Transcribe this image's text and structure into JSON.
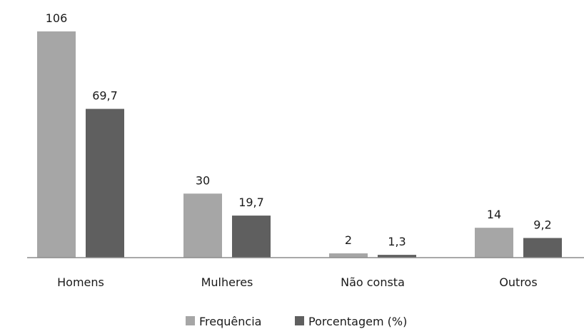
{
  "chart_data": {
    "type": "bar",
    "categories": [
      "Homens",
      "Mulheres",
      "Não consta",
      "Outros"
    ],
    "series": [
      {
        "name": "Frequência",
        "values": [
          106,
          30,
          2,
          14
        ],
        "value_labels": [
          "106",
          "30",
          "2",
          "14"
        ],
        "color": "#a6a6a6"
      },
      {
        "name": "Porcentagem (%)",
        "values": [
          69.7,
          19.7,
          1.3,
          9.2
        ],
        "value_labels": [
          "69,7",
          "19,7",
          "1,3",
          "9,2"
        ],
        "color": "#5f5f5f"
      }
    ],
    "ylim": [
      0,
      106
    ],
    "grid": false,
    "legend_position": "bottom-center",
    "axis_color": "#8c8c8c"
  }
}
